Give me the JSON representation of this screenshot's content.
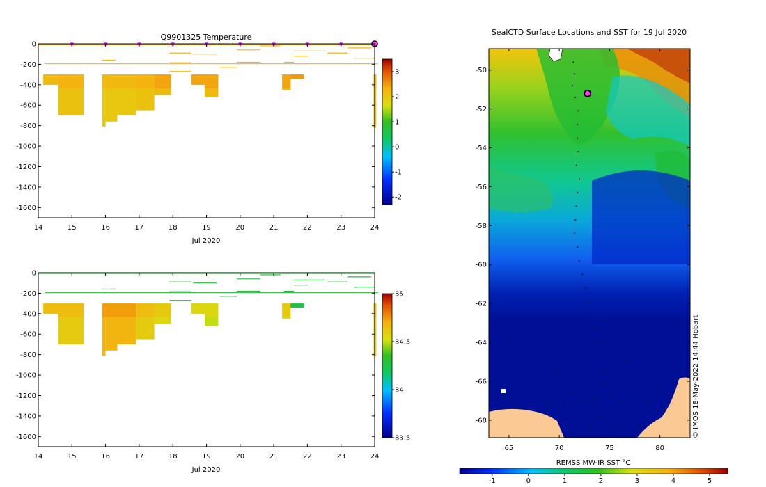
{
  "colors": {
    "warm": "#f5b516",
    "warm_dark": "#f0a20a",
    "orange": "#e9870a",
    "green": "#27b93a",
    "marker": "#ff33ff",
    "land": "#fbc993",
    "deep_blue": "#001096",
    "axis": "#000000"
  },
  "chart_data": [
    {
      "type": "heatmap",
      "title": "Q9901325  Temperature",
      "xlabel": "Jul 2020",
      "x_ticks": [
        "14",
        "15",
        "16",
        "17",
        "18",
        "19",
        "20",
        "21",
        "22",
        "23",
        "24"
      ],
      "y_ticks": [
        "0",
        "-200",
        "-400",
        "-600",
        "-800",
        "-1000",
        "-1200",
        "-1400",
        "-1600"
      ],
      "xlim": [
        14,
        24
      ],
      "ylim": [
        -1700,
        0
      ],
      "colorbar": {
        "ticks": [
          "3",
          "2",
          "1",
          "0",
          "-1",
          "-2"
        ],
        "range": [
          -2.3,
          3.5
        ]
      },
      "profile_days": [
        15,
        16,
        17,
        18,
        19,
        20,
        21,
        22,
        23,
        24
      ],
      "casts": [
        {
          "t0": 14.15,
          "t1": 14.6,
          "depth": 400,
          "v": 2.0
        },
        {
          "t0": 14.6,
          "t1": 15.35,
          "depth": 700,
          "v": 2.1
        },
        {
          "t0": 15.9,
          "t1": 16.0,
          "depth": 810,
          "v": 2.0
        },
        {
          "t0": 16.0,
          "t1": 16.35,
          "depth": 760,
          "v": 2.0
        },
        {
          "t0": 16.35,
          "t1": 16.9,
          "depth": 700,
          "v": 2.0
        },
        {
          "t0": 16.9,
          "t1": 17.45,
          "depth": 650,
          "v": 2.1
        },
        {
          "t0": 17.45,
          "t1": 17.95,
          "depth": 500,
          "v": 2.2
        },
        {
          "t0": 18.55,
          "t1": 18.95,
          "depth": 400,
          "v": 2.2
        },
        {
          "t0": 18.95,
          "t1": 19.35,
          "depth": 520,
          "v": 2.2
        },
        {
          "t0": 21.25,
          "t1": 21.5,
          "depth": 450,
          "v": 2.2
        },
        {
          "t0": 21.5,
          "t1": 21.9,
          "depth": 340,
          "v": 2.3
        },
        {
          "t0": 22.0,
          "t1": 22.55,
          "depth": 260,
          "v": 2.3
        },
        {
          "t0": 22.55,
          "t1": 23.05,
          "depth": 300,
          "v": 2.3
        },
        {
          "t0": 23.97,
          "t1": 24.05,
          "depth": 820,
          "v": 2.1
        }
      ],
      "shallow_lines": [
        {
          "t0": 14.2,
          "t1": 24.1,
          "depth": 195
        },
        {
          "t0": 15.9,
          "t1": 16.3,
          "depth": 160
        },
        {
          "t0": 17.9,
          "t1": 18.55,
          "depth": 185
        },
        {
          "t0": 17.9,
          "t1": 18.55,
          "depth": 270
        },
        {
          "t0": 17.9,
          "t1": 18.55,
          "depth": 90
        },
        {
          "t0": 18.6,
          "t1": 19.3,
          "depth": 100
        },
        {
          "t0": 19.4,
          "t1": 19.9,
          "depth": 230
        },
        {
          "t0": 19.9,
          "t1": 20.6,
          "depth": 180
        },
        {
          "t0": 19.9,
          "t1": 20.6,
          "depth": 60
        },
        {
          "t0": 20.6,
          "t1": 21.2,
          "depth": 20
        },
        {
          "t0": 21.3,
          "t1": 21.6,
          "depth": 180
        },
        {
          "t0": 21.6,
          "t1": 22.0,
          "depth": 120
        },
        {
          "t0": 21.6,
          "t1": 22.5,
          "depth": 70
        },
        {
          "t0": 22.6,
          "t1": 23.2,
          "depth": 90
        },
        {
          "t0": 23.2,
          "t1": 23.9,
          "depth": 40
        },
        {
          "t0": 23.4,
          "t1": 24.0,
          "depth": 140
        }
      ]
    },
    {
      "type": "heatmap",
      "title": "",
      "xlabel": "Jul 2020",
      "x_ticks": [
        "14",
        "15",
        "16",
        "17",
        "18",
        "19",
        "20",
        "21",
        "22",
        "23",
        "24"
      ],
      "y_ticks": [
        "0",
        "-200",
        "-400",
        "-600",
        "-800",
        "-1000",
        "-1200",
        "-1400",
        "-1600"
      ],
      "xlim": [
        14,
        24
      ],
      "ylim": [
        -1700,
        0
      ],
      "colorbar": {
        "ticks": [
          "35",
          "34.5",
          "34",
          "33.5"
        ],
        "range": [
          33.5,
          35
        ]
      },
      "casts": [
        {
          "t0": 14.15,
          "t1": 14.6,
          "depth": 400,
          "v": 34.6
        },
        {
          "t0": 14.6,
          "t1": 15.35,
          "depth": 700,
          "v": 34.6
        },
        {
          "t0": 15.9,
          "t1": 16.0,
          "depth": 810,
          "v": 34.68
        },
        {
          "t0": 16.0,
          "t1": 16.35,
          "depth": 760,
          "v": 34.68
        },
        {
          "t0": 16.35,
          "t1": 16.9,
          "depth": 700,
          "v": 34.68
        },
        {
          "t0": 16.9,
          "t1": 17.45,
          "depth": 650,
          "v": 34.6
        },
        {
          "t0": 17.45,
          "t1": 17.95,
          "depth": 500,
          "v": 34.55
        },
        {
          "t0": 18.55,
          "t1": 18.95,
          "depth": 400,
          "v": 34.5
        },
        {
          "t0": 18.95,
          "t1": 19.35,
          "depth": 520,
          "v": 34.5
        },
        {
          "t0": 21.25,
          "t1": 21.5,
          "depth": 450,
          "v": 34.55
        },
        {
          "t0": 21.5,
          "t1": 21.9,
          "depth": 340,
          "v": 34.2
        },
        {
          "t0": 22.0,
          "t1": 22.55,
          "depth": 260,
          "v": 34.2
        },
        {
          "t0": 22.55,
          "t1": 23.05,
          "depth": 300,
          "v": 34.4
        },
        {
          "t0": 23.97,
          "t1": 24.05,
          "depth": 820,
          "v": 34.6
        }
      ],
      "shallow_lines": [
        {
          "t0": 14.2,
          "t1": 24.1,
          "depth": 195
        },
        {
          "t0": 15.9,
          "t1": 16.3,
          "depth": 160
        },
        {
          "t0": 17.9,
          "t1": 18.55,
          "depth": 185
        },
        {
          "t0": 17.9,
          "t1": 18.55,
          "depth": 270
        },
        {
          "t0": 17.9,
          "t1": 18.55,
          "depth": 90
        },
        {
          "t0": 18.6,
          "t1": 19.3,
          "depth": 100
        },
        {
          "t0": 19.4,
          "t1": 19.9,
          "depth": 230
        },
        {
          "t0": 19.9,
          "t1": 20.6,
          "depth": 180
        },
        {
          "t0": 19.9,
          "t1": 20.6,
          "depth": 60
        },
        {
          "t0": 20.6,
          "t1": 21.2,
          "depth": 20
        },
        {
          "t0": 21.3,
          "t1": 21.6,
          "depth": 180
        },
        {
          "t0": 21.6,
          "t1": 22.0,
          "depth": 120
        },
        {
          "t0": 21.6,
          "t1": 22.5,
          "depth": 70
        },
        {
          "t0": 22.6,
          "t1": 23.2,
          "depth": 90
        },
        {
          "t0": 23.2,
          "t1": 23.9,
          "depth": 40
        },
        {
          "t0": 23.4,
          "t1": 24.0,
          "depth": 140
        }
      ]
    },
    {
      "type": "heatmap",
      "title": "SealCTD Surface Locations and SST for 19 Jul 2020",
      "xlabel": "",
      "x_ticks": [
        "65",
        "70",
        "75",
        "80"
      ],
      "y_ticks": [
        "-50",
        "-52",
        "-54",
        "-56",
        "-58",
        "-60",
        "-62",
        "-64",
        "-66",
        "-68"
      ],
      "xlim": [
        63,
        83
      ],
      "ylim": [
        -68.9,
        -48.9
      ],
      "colorbar": {
        "label": "REMSS MW-IR SST °C",
        "ticks": [
          "-1",
          "0",
          "1",
          "2",
          "3",
          "4",
          "5"
        ],
        "range": [
          -1.9,
          5.5
        ]
      },
      "credit": "© IMOS 18-May-2022 14:44 Hobart",
      "current_position": {
        "lon": 72.8,
        "lat": -51.2
      },
      "track": [
        {
          "lon": 71.4,
          "lat": -49.6
        },
        {
          "lon": 71.5,
          "lat": -50.2
        },
        {
          "lon": 71.3,
          "lat": -50.8
        },
        {
          "lon": 71.6,
          "lat": -51.4
        },
        {
          "lon": 71.9,
          "lat": -52.1
        },
        {
          "lon": 71.8,
          "lat": -52.8
        },
        {
          "lon": 71.8,
          "lat": -53.5
        },
        {
          "lon": 71.9,
          "lat": -54.2
        },
        {
          "lon": 71.7,
          "lat": -54.9
        },
        {
          "lon": 72.0,
          "lat": -55.6
        },
        {
          "lon": 71.8,
          "lat": -56.3
        },
        {
          "lon": 71.7,
          "lat": -57.0
        },
        {
          "lon": 71.6,
          "lat": -57.7
        },
        {
          "lon": 71.5,
          "lat": -58.4
        },
        {
          "lon": 71.8,
          "lat": -59.1
        },
        {
          "lon": 72.0,
          "lat": -59.8
        },
        {
          "lon": 72.3,
          "lat": -60.5
        },
        {
          "lon": 72.6,
          "lat": -61.2
        },
        {
          "lon": 72.9,
          "lat": -61.9
        },
        {
          "lon": 73.2,
          "lat": -62.6
        },
        {
          "lon": 73.6,
          "lat": -63.3
        },
        {
          "lon": 73.9,
          "lat": -64.0
        },
        {
          "lon": 74.2,
          "lat": -64.7
        },
        {
          "lon": 74.5,
          "lat": -65.4
        },
        {
          "lon": 74.8,
          "lat": -66.1
        },
        {
          "lon": 73.5,
          "lat": -66.9
        },
        {
          "lon": 72.0,
          "lat": -67.0
        },
        {
          "lon": 70.5,
          "lat": -67.1
        },
        {
          "lon": 69.0,
          "lat": -67.2
        },
        {
          "lon": 76.0,
          "lat": -67.0
        },
        {
          "lon": 77.5,
          "lat": -66.8
        },
        {
          "lon": 79.0,
          "lat": -67.0
        },
        {
          "lon": 74.0,
          "lat": -67.8
        },
        {
          "lon": 75.5,
          "lat": -68.2
        },
        {
          "lon": 78.0,
          "lat": -68.3
        },
        {
          "lon": 68.5,
          "lat": -67.6
        },
        {
          "lon": 80.5,
          "lat": -67.5
        },
        {
          "lon": 73.0,
          "lat": -68.4
        },
        {
          "lon": 71.0,
          "lat": -66.6
        },
        {
          "lon": 75.0,
          "lat": -66.7
        },
        {
          "lon": 70.0,
          "lat": -65.5
        },
        {
          "lon": 76.5,
          "lat": -65.0
        }
      ]
    }
  ]
}
